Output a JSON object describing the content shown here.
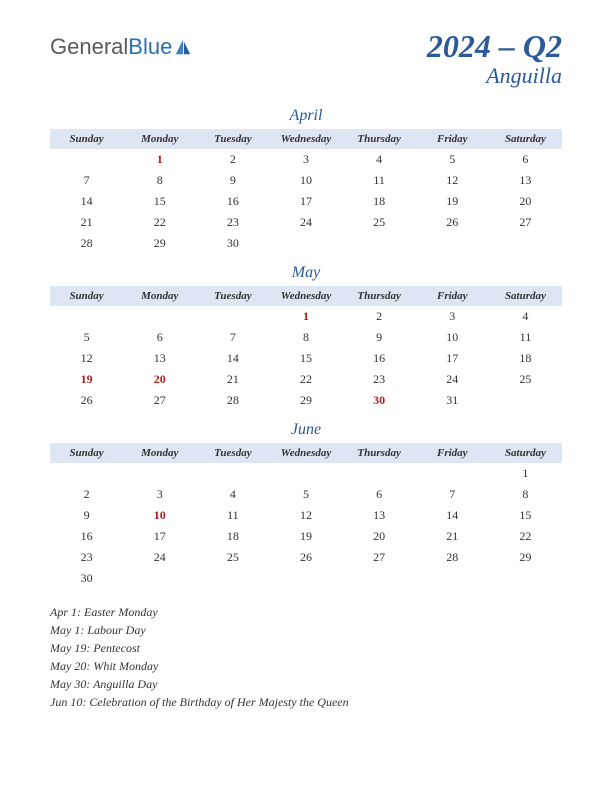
{
  "logo": {
    "part1": "General",
    "part2": "Blue"
  },
  "title": {
    "quarter": "2024 – Q2",
    "country": "Anguilla"
  },
  "colors": {
    "header_bg": "#dde6f2",
    "accent": "#2a5a9a",
    "holiday": "#b02020",
    "text": "#333333",
    "background": "#ffffff"
  },
  "weekdays": [
    "Sunday",
    "Monday",
    "Tuesday",
    "Wednesday",
    "Thursday",
    "Friday",
    "Saturday"
  ],
  "months": [
    {
      "name": "April",
      "weeks": [
        [
          "",
          "1",
          "2",
          "3",
          "4",
          "5",
          "6"
        ],
        [
          "7",
          "8",
          "9",
          "10",
          "11",
          "12",
          "13"
        ],
        [
          "14",
          "15",
          "16",
          "17",
          "18",
          "19",
          "20"
        ],
        [
          "21",
          "22",
          "23",
          "24",
          "25",
          "26",
          "27"
        ],
        [
          "28",
          "29",
          "30",
          "",
          "",
          "",
          ""
        ]
      ],
      "holidays": [
        "1"
      ]
    },
    {
      "name": "May",
      "weeks": [
        [
          "",
          "",
          "",
          "1",
          "2",
          "3",
          "4"
        ],
        [
          "5",
          "6",
          "7",
          "8",
          "9",
          "10",
          "11"
        ],
        [
          "12",
          "13",
          "14",
          "15",
          "16",
          "17",
          "18"
        ],
        [
          "19",
          "20",
          "21",
          "22",
          "23",
          "24",
          "25"
        ],
        [
          "26",
          "27",
          "28",
          "29",
          "30",
          "31",
          ""
        ]
      ],
      "holidays": [
        "1",
        "19",
        "20",
        "30"
      ]
    },
    {
      "name": "June",
      "weeks": [
        [
          "",
          "",
          "",
          "",
          "",
          "",
          "1"
        ],
        [
          "2",
          "3",
          "4",
          "5",
          "6",
          "7",
          "8"
        ],
        [
          "9",
          "10",
          "11",
          "12",
          "13",
          "14",
          "15"
        ],
        [
          "16",
          "17",
          "18",
          "19",
          "20",
          "21",
          "22"
        ],
        [
          "23",
          "24",
          "25",
          "26",
          "27",
          "28",
          "29"
        ],
        [
          "30",
          "",
          "",
          "",
          "",
          "",
          ""
        ]
      ],
      "holidays": [
        "10"
      ]
    }
  ],
  "holiday_list": [
    "Apr 1: Easter Monday",
    "May 1: Labour Day",
    "May 19: Pentecost",
    "May 20: Whit Monday",
    "May 30: Anguilla Day",
    "Jun 10: Celebration of the Birthday of Her Majesty the Queen"
  ]
}
